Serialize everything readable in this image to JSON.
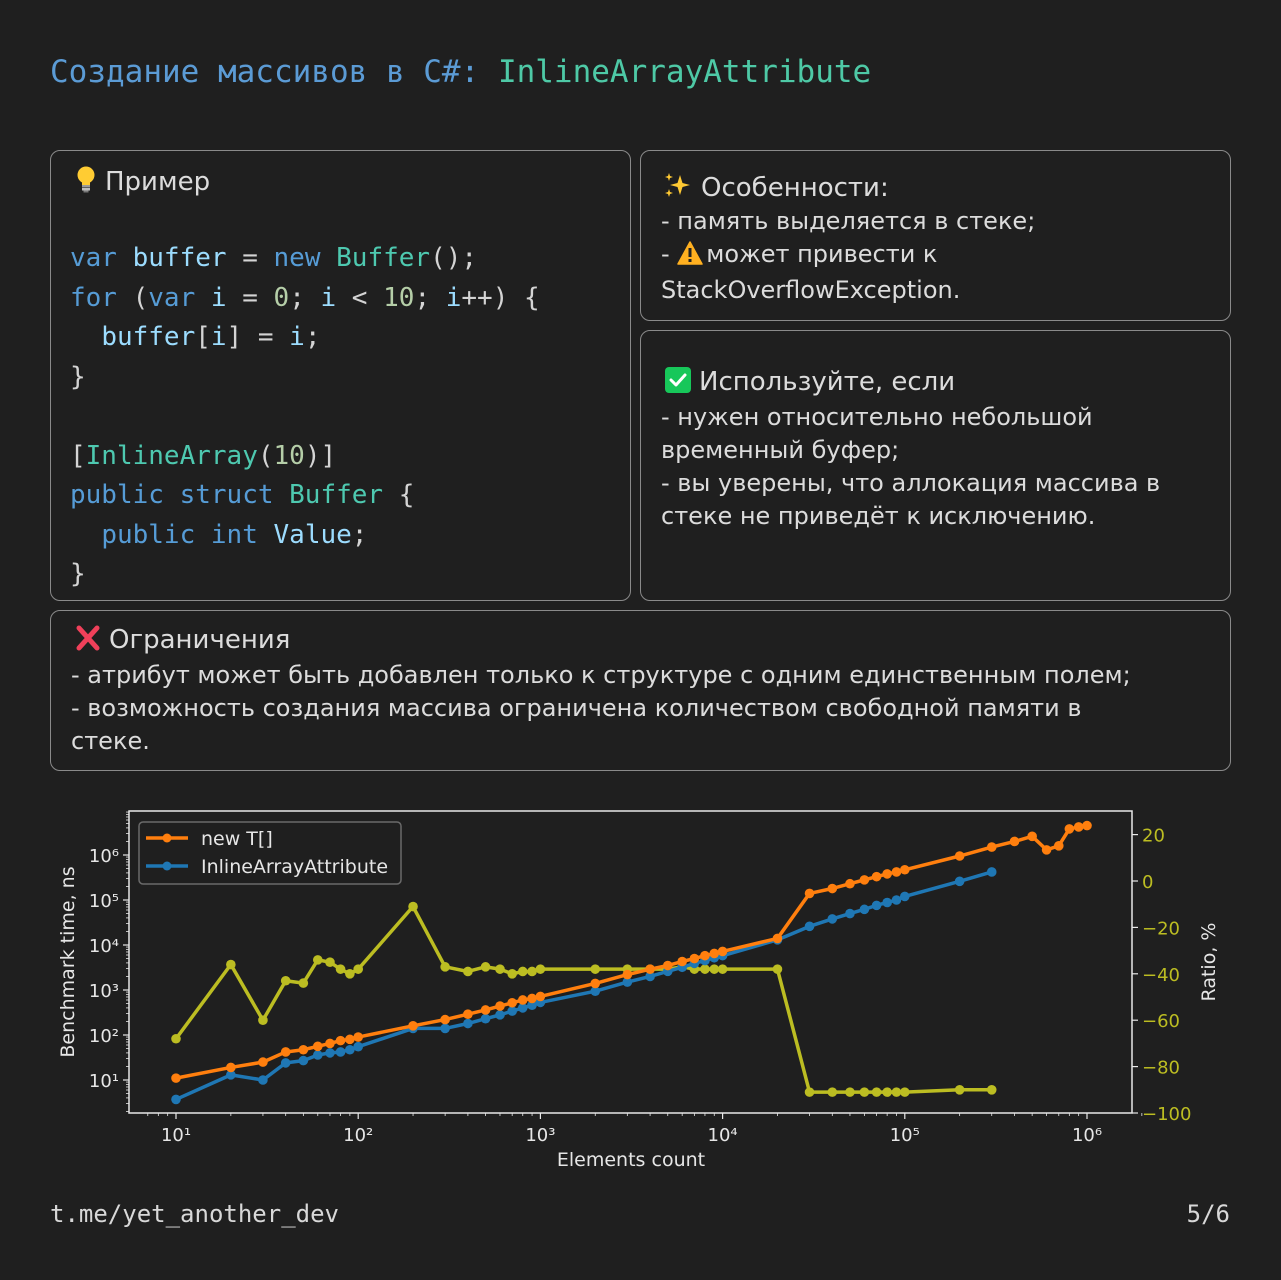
{
  "header": {
    "title_part1": "Создание массивов в C#: ",
    "title_part2": "InlineArrayAttribute"
  },
  "example_card": {
    "icon": "lightbulb-icon",
    "heading": "Пример",
    "code_lines": [
      "var buffer = new Buffer();",
      "for (var i = 0; i < 10; i++) {",
      "  buffer[i] = i;",
      "}",
      "",
      "[InlineArray(10)]",
      "public struct Buffer {",
      "  public int Value;",
      "}"
    ]
  },
  "features_card": {
    "icon": "sparkles-icon",
    "heading": "Особенности:",
    "line1": "- память выделяется в стеке;",
    "line2_prefix": "- ",
    "line2_icon": "warning-icon",
    "line2_text": "может привести к",
    "line3": "StackOverflowException."
  },
  "usage_card": {
    "icon": "check-icon",
    "heading": "Используйте, если",
    "line1": "- нужен относительно небольшой",
    "line2": "временный буфер;",
    "line3": "- вы уверены, что аллокация массива в",
    "line4": "стеке не приведёт к исключению."
  },
  "limits_card": {
    "icon": "cross-icon",
    "heading": "Ограничения",
    "line1": "- атрибут может быть добавлен только к структуре с одним единственным полем;",
    "line2": "- возможность создания массива ограничена количеством свободной памяти в",
    "line3": "стеке."
  },
  "footer": {
    "link": "t.me/yet_another_dev",
    "page": "5/6"
  },
  "colors": {
    "background": "#1f1f1f",
    "orange": "#ff7f0e",
    "blue": "#1f77b4",
    "ratio": "#bcbd22",
    "title_blue": "#5b9bd5",
    "title_green": "#4ec9a6"
  },
  "chart_data": {
    "type": "line",
    "title": "",
    "xlabel": "Elements count",
    "ylabel": "Benchmark time, ns",
    "y2label": "Ratio, %",
    "xscale": "log",
    "yscale": "log",
    "xticks": [
      "10^1",
      "10^2",
      "10^3",
      "10^4",
      "10^5",
      "10^6"
    ],
    "yticks": [
      "10^1",
      "10^2",
      "10^3",
      "10^4",
      "10^5",
      "10^6"
    ],
    "y2ticks": [
      20,
      0,
      -20,
      -40,
      -60,
      -80,
      -100
    ],
    "y2lim": [
      -100,
      30
    ],
    "legend": {
      "position": "upper left",
      "entries": [
        "new T[]",
        "InlineArrayAttribute"
      ]
    },
    "grid": false,
    "series": [
      {
        "name": "new T[]",
        "axis": "left",
        "color": "#ff7f0e",
        "x": [
          10,
          20,
          30,
          40,
          50,
          60,
          70,
          80,
          90,
          100,
          200,
          300,
          400,
          500,
          600,
          700,
          800,
          900,
          1000,
          2000,
          3000,
          4000,
          5000,
          6000,
          7000,
          8000,
          9000,
          10000,
          20000,
          30000,
          40000,
          50000,
          60000,
          70000,
          80000,
          90000,
          100000,
          200000,
          300000,
          400000,
          500000,
          600000,
          700000,
          800000,
          900000,
          1000000
        ],
        "y": [
          11,
          19,
          25,
          42,
          47,
          56,
          65,
          75,
          80,
          90,
          160,
          220,
          290,
          360,
          440,
          520,
          600,
          650,
          720,
          1400,
          2200,
          2900,
          3500,
          4300,
          5000,
          5800,
          6500,
          7200,
          14000,
          140000,
          180000,
          230000,
          280000,
          330000,
          380000,
          420000,
          470000,
          950000,
          1500000,
          2000000,
          2600000,
          1300000,
          1600000,
          3800000,
          4200000,
          4500000
        ]
      },
      {
        "name": "InlineArrayAttribute",
        "axis": "left",
        "color": "#1f77b4",
        "x": [
          10,
          20,
          30,
          40,
          50,
          60,
          70,
          80,
          90,
          100,
          200,
          300,
          400,
          500,
          600,
          700,
          800,
          900,
          1000,
          2000,
          3000,
          4000,
          5000,
          6000,
          7000,
          8000,
          9000,
          10000,
          20000,
          30000,
          40000,
          50000,
          60000,
          70000,
          80000,
          90000,
          100000,
          200000,
          300000
        ],
        "y": [
          3.7,
          13,
          10,
          24,
          27,
          36,
          40,
          42,
          47,
          55,
          140,
          140,
          180,
          230,
          280,
          340,
          400,
          460,
          530,
          940,
          1500,
          2000,
          2600,
          3200,
          3900,
          4500,
          5200,
          5800,
          13000,
          26000,
          38000,
          50000,
          62000,
          76000,
          88000,
          100000,
          120000,
          260000,
          420000
        ]
      },
      {
        "name": "Ratio",
        "axis": "right",
        "color": "#bcbd22",
        "x": [
          10,
          20,
          30,
          40,
          50,
          60,
          70,
          80,
          90,
          100,
          200,
          300,
          400,
          500,
          600,
          700,
          800,
          900,
          1000,
          2000,
          3000,
          4000,
          5000,
          6000,
          7000,
          8000,
          9000,
          10000,
          20000,
          30000,
          40000,
          50000,
          60000,
          70000,
          80000,
          90000,
          100000,
          200000,
          300000
        ],
        "y": [
          -68,
          -36,
          -60,
          -43,
          -44,
          -34,
          -35,
          -38,
          -40,
          -38,
          -11,
          -37,
          -39,
          -37,
          -38,
          -40,
          -39,
          -39,
          -38,
          -38,
          -38,
          -38,
          -38,
          -37,
          -38,
          -38,
          -38,
          -38,
          -38,
          -91,
          -91,
          -91,
          -91,
          -91,
          -91,
          -91,
          -91,
          -90,
          -90
        ]
      }
    ]
  }
}
